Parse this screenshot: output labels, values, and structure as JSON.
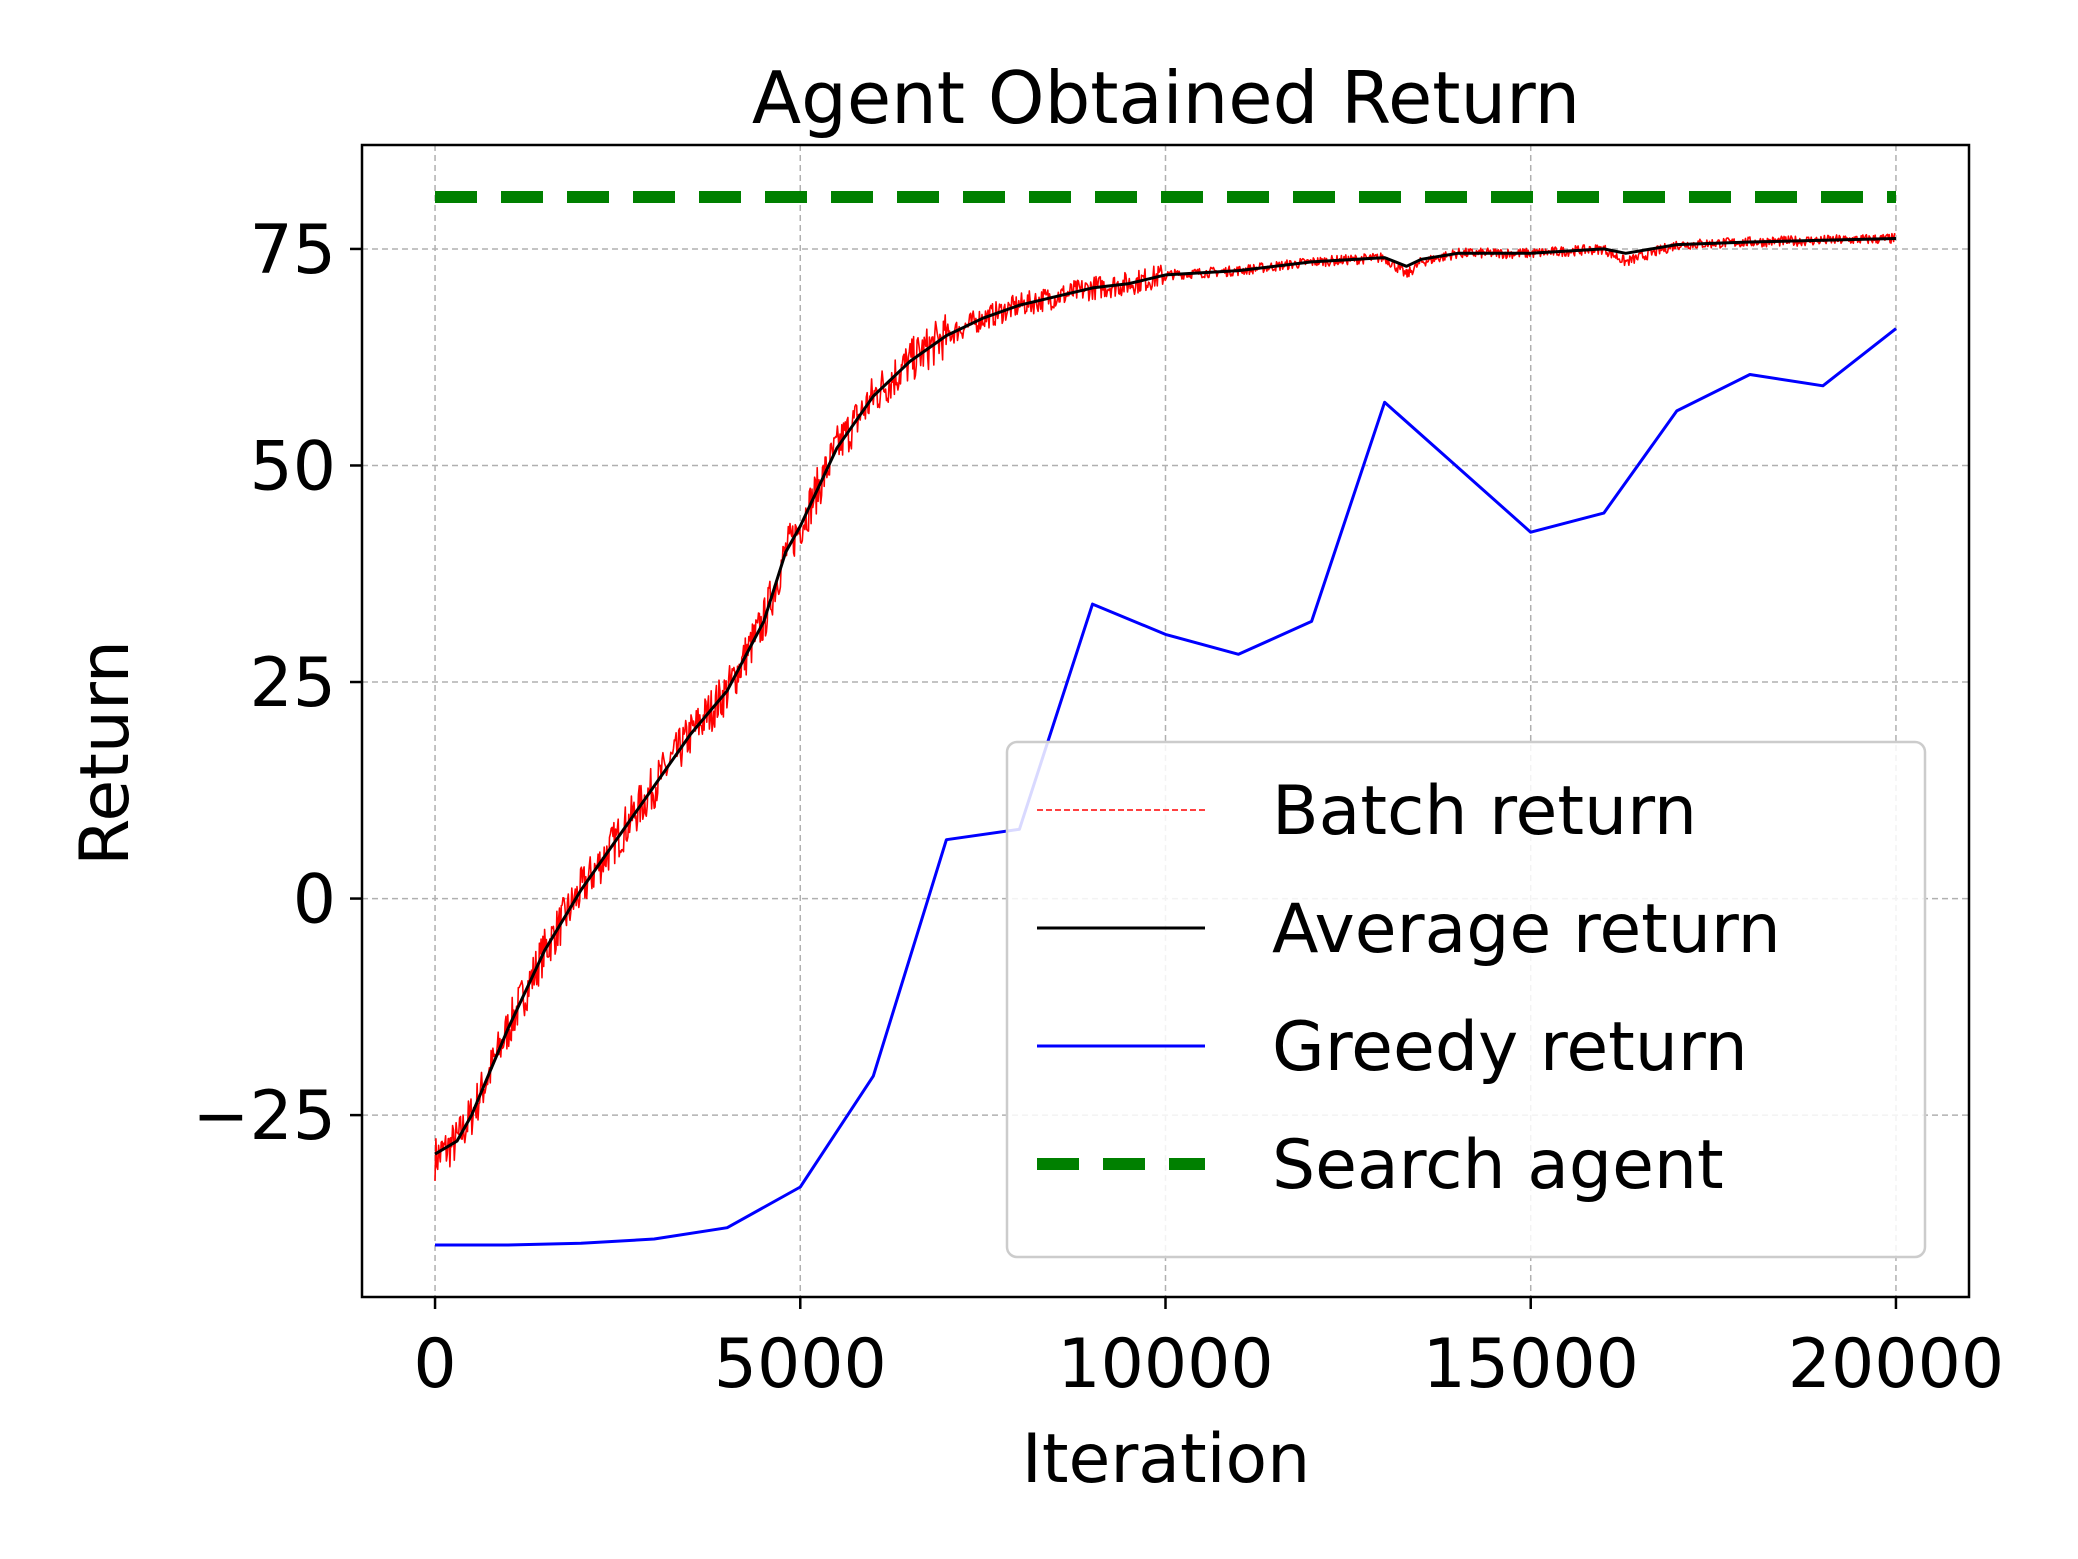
{
  "chart_data": {
    "type": "line",
    "title": "Agent Obtained Return",
    "xlabel": "Iteration",
    "ylabel": "Return",
    "xlim": [
      -1000,
      21000
    ],
    "ylim": [
      -46,
      87
    ],
    "xticks": [
      0,
      5000,
      10000,
      15000,
      20000
    ],
    "xtick_labels": [
      "0",
      "5000",
      "10000",
      "15000",
      "20000"
    ],
    "yticks": [
      -25,
      0,
      25,
      50,
      75
    ],
    "ytick_labels": [
      "−25",
      "0",
      "25",
      "50",
      "75"
    ],
    "grid": true,
    "legend_position": "lower right",
    "series": [
      {
        "name": "Batch return",
        "color": "#ff0000",
        "style": "dashed-thin",
        "x": [
          0,
          300,
          500,
          1000,
          1500,
          2000,
          2500,
          3000,
          3500,
          4000,
          4500,
          4800,
          5000,
          5500,
          6000,
          6500,
          7000,
          7500,
          8000,
          8500,
          9000,
          9500,
          10000,
          11000,
          12000,
          13000,
          13300,
          13500,
          14000,
          15000,
          16000,
          16300,
          17000,
          18000,
          19000,
          20000
        ],
        "y": [
          -30,
          -28,
          -25,
          -15,
          -6,
          1,
          7,
          13,
          19,
          24,
          32,
          40,
          43,
          52,
          58,
          62,
          65,
          67,
          68.5,
          69.5,
          70.5,
          71,
          72,
          72.5,
          73.5,
          74,
          72,
          73.5,
          74.5,
          74.5,
          75,
          73.5,
          75.5,
          75.8,
          76,
          76.2
        ]
      },
      {
        "name": "Average return",
        "color": "#000000",
        "style": "solid",
        "x": [
          0,
          300,
          500,
          1000,
          1500,
          2000,
          2500,
          3000,
          3500,
          4000,
          4500,
          4800,
          5000,
          5500,
          6000,
          6500,
          7000,
          7500,
          8000,
          8500,
          9000,
          9500,
          10000,
          11000,
          12000,
          13000,
          13300,
          13500,
          14000,
          15000,
          16000,
          16300,
          17000,
          18000,
          19000,
          20000
        ],
        "y": [
          -29.5,
          -28,
          -25,
          -15,
          -6,
          1,
          7,
          13,
          19,
          24,
          32,
          40,
          43,
          52,
          58,
          62,
          65,
          67,
          68.5,
          69.5,
          70.5,
          71,
          72,
          72.5,
          73.5,
          74,
          73,
          73.8,
          74.5,
          74.5,
          75,
          74.5,
          75.5,
          75.8,
          76,
          76.2
        ]
      },
      {
        "name": "Greedy return",
        "color": "#0000ff",
        "style": "solid",
        "x": [
          0,
          1000,
          2000,
          3000,
          4000,
          5000,
          6000,
          7000,
          8000,
          9000,
          10000,
          11000,
          12000,
          13000,
          14000,
          15000,
          16000,
          17000,
          18000,
          19000,
          20000
        ],
        "y": [
          -40,
          -40,
          -39.8,
          -39.3,
          -38,
          -33.3,
          -20.5,
          6.8,
          8,
          34,
          30.5,
          28.2,
          32,
          57.3,
          49.8,
          42.3,
          44.5,
          56.3,
          60.5,
          59.2,
          65.8
        ]
      },
      {
        "name": "Search agent",
        "color": "#008000",
        "style": "dashed-thick",
        "x": [
          0,
          20000
        ],
        "y": [
          81,
          81
        ]
      }
    ]
  }
}
